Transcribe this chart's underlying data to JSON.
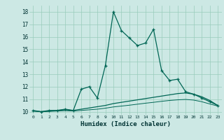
{
  "xlabel": "Humidex (Indice chaleur)",
  "bg_color": "#cce8e4",
  "line_color": "#006655",
  "grid_color": "#99ccbb",
  "xlim": [
    -0.5,
    23.5
  ],
  "ylim": [
    9.75,
    18.5
  ],
  "xticks": [
    0,
    1,
    2,
    3,
    4,
    5,
    6,
    7,
    8,
    9,
    10,
    11,
    12,
    13,
    14,
    15,
    16,
    17,
    18,
    19,
    20,
    21,
    22,
    23
  ],
  "yticks": [
    10,
    11,
    12,
    13,
    14,
    15,
    16,
    17,
    18
  ],
  "line1_x": [
    0,
    1,
    2,
    3,
    4,
    5,
    6,
    7,
    8,
    9,
    10,
    11,
    12,
    13,
    14,
    15,
    16,
    17,
    18,
    19,
    20,
    21,
    22,
    23
  ],
  "line1_y": [
    10.1,
    10.0,
    10.1,
    10.1,
    10.2,
    10.1,
    11.8,
    12.0,
    11.1,
    13.7,
    18.0,
    16.5,
    15.9,
    15.3,
    15.5,
    16.6,
    13.3,
    12.5,
    12.6,
    11.6,
    11.4,
    11.1,
    10.8,
    10.5
  ],
  "line2_x": [
    0,
    1,
    2,
    3,
    4,
    5,
    6,
    7,
    8,
    9,
    10,
    11,
    12,
    13,
    14,
    15,
    16,
    17,
    18,
    19,
    20,
    21,
    22,
    23
  ],
  "line2_y": [
    10.05,
    10.0,
    10.05,
    10.1,
    10.15,
    10.1,
    10.2,
    10.3,
    10.4,
    10.5,
    10.65,
    10.75,
    10.85,
    10.95,
    11.05,
    11.15,
    11.25,
    11.35,
    11.45,
    11.5,
    11.4,
    11.2,
    10.9,
    10.5
  ],
  "line3_x": [
    0,
    1,
    2,
    3,
    4,
    5,
    6,
    7,
    8,
    9,
    10,
    11,
    12,
    13,
    14,
    15,
    16,
    17,
    18,
    19,
    20,
    21,
    22,
    23
  ],
  "line3_y": [
    10.05,
    10.0,
    10.02,
    10.05,
    10.08,
    10.05,
    10.1,
    10.15,
    10.2,
    10.28,
    10.38,
    10.45,
    10.52,
    10.6,
    10.68,
    10.75,
    10.83,
    10.9,
    10.95,
    10.98,
    10.93,
    10.8,
    10.62,
    10.45
  ]
}
